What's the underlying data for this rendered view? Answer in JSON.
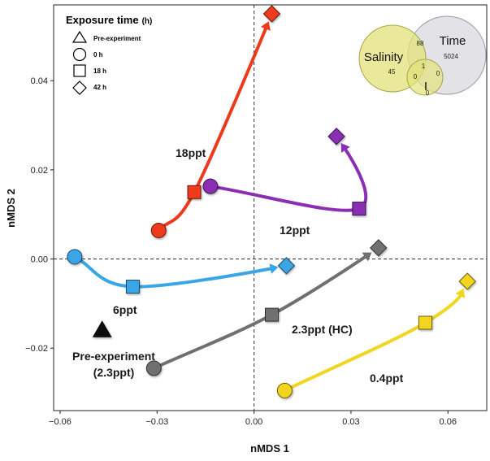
{
  "chart_data": {
    "type": "scatter",
    "xlabel": "nMDS 1",
    "ylabel": "nMDS 2",
    "xlim": [
      -0.062,
      0.072
    ],
    "ylim": [
      -0.034,
      0.057
    ],
    "x_ticks": [
      -0.06,
      -0.03,
      0.0,
      0.03,
      0.06
    ],
    "x_tick_labels": [
      "−0.06",
      "−0.03",
      "0.00",
      "0.03",
      "0.06"
    ],
    "y_ticks": [
      -0.02,
      0.0,
      0.02,
      0.04
    ],
    "y_tick_labels": [
      "−0.02",
      "0.00",
      "0.02",
      "0.04"
    ],
    "reference_lines": {
      "x": 0,
      "y": 0,
      "style": "dashed"
    },
    "legend": {
      "title": "Exposure time",
      "title_unit": "(h)",
      "placement": "top-left",
      "entries": [
        {
          "label": "Pre-experiment",
          "shape": "triangle"
        },
        {
          "label": "0 h",
          "shape": "circle"
        },
        {
          "label": "18 h",
          "shape": "square"
        },
        {
          "label": "42 h",
          "shape": "diamond"
        }
      ]
    },
    "pre_experiment": {
      "label": "Pre-experiment",
      "label2": "(2.3ppt)",
      "x": -0.047,
      "y": -0.016,
      "shape": "triangle",
      "color": "#111111"
    },
    "series": [
      {
        "name": "18ppt",
        "color": "#ee3a1c",
        "points": [
          {
            "x": -0.0295,
            "y": 0.0064,
            "shape": "circle"
          },
          {
            "x": -0.0185,
            "y": 0.015,
            "shape": "square"
          },
          {
            "x": 0.0055,
            "y": 0.055,
            "shape": "diamond"
          }
        ]
      },
      {
        "name": "12ppt",
        "color": "#8a2fb3",
        "points": [
          {
            "x": -0.0135,
            "y": 0.0163,
            "shape": "circle"
          },
          {
            "x": 0.0325,
            "y": 0.0113,
            "shape": "square"
          },
          {
            "x": 0.0255,
            "y": 0.0275,
            "shape": "diamond"
          }
        ]
      },
      {
        "name": "6ppt",
        "color": "#3ba6e6",
        "points": [
          {
            "x": -0.0555,
            "y": 0.0005,
            "shape": "circle"
          },
          {
            "x": -0.0375,
            "y": -0.0062,
            "shape": "square"
          },
          {
            "x": 0.01,
            "y": -0.0015,
            "shape": "diamond"
          }
        ]
      },
      {
        "name": "2.3ppt (HC)",
        "color": "#707070",
        "points": [
          {
            "x": -0.031,
            "y": -0.0245,
            "shape": "circle"
          },
          {
            "x": 0.0055,
            "y": -0.0125,
            "shape": "square"
          },
          {
            "x": 0.0385,
            "y": 0.0025,
            "shape": "diamond"
          }
        ]
      },
      {
        "name": "0.4ppt",
        "color": "#f2d51e",
        "points": [
          {
            "x": 0.0095,
            "y": -0.0295,
            "shape": "circle"
          },
          {
            "x": 0.053,
            "y": -0.0143,
            "shape": "square"
          },
          {
            "x": 0.066,
            "y": -0.005,
            "shape": "diamond"
          }
        ]
      }
    ],
    "venn": {
      "placement": "top-right",
      "sets": [
        {
          "name": "Salinity",
          "color": "#e3e27a"
        },
        {
          "name": "Time",
          "color": "#d9d9df"
        },
        {
          "name": "I",
          "color": "#e3e27a"
        }
      ],
      "values": {
        "salinity_only": "45",
        "time_only": "5024",
        "salinity_time": "88",
        "all_three": "1",
        "salinity_i": "0",
        "time_i": "0",
        "i_only": "0"
      }
    }
  }
}
